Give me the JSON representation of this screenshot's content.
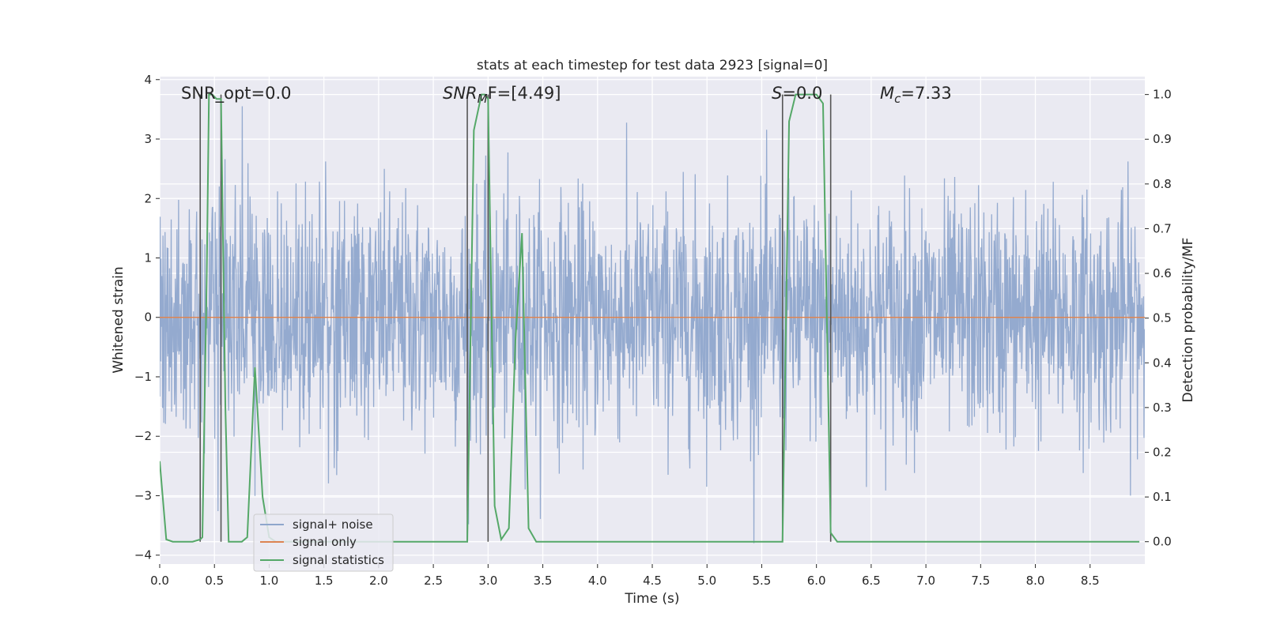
{
  "chart_data": {
    "type": "line",
    "title": "stats at each timestep for test data 2923 [signal=0]",
    "xlabel": "Time (s)",
    "ylabel_left": "Whitened strain",
    "ylabel_right": "Detection probability/MF",
    "xlim": [
      0,
      9.0
    ],
    "ylim_left": [
      -4.15,
      4.05
    ],
    "ylim_right": [
      -0.05,
      1.04
    ],
    "x_ticks": [
      "0.0",
      "0.5",
      "1.0",
      "1.5",
      "2.0",
      "2.5",
      "3.0",
      "3.5",
      "4.0",
      "4.5",
      "5.0",
      "5.5",
      "6.0",
      "6.5",
      "7.0",
      "7.5",
      "8.0",
      "8.5"
    ],
    "y_ticks_left": [
      "4",
      "3",
      "2",
      "1",
      "0",
      "−1",
      "−2",
      "−3",
      "−4"
    ],
    "y_ticks_right": [
      "1.0",
      "0.9",
      "0.8",
      "0.7",
      "0.6",
      "0.5",
      "0.4",
      "0.3",
      "0.2",
      "0.1",
      "0.0"
    ],
    "grid": true,
    "legend_position": "lower-left",
    "annotations": {
      "snr_opt": "SNR_opt=0.0",
      "snr_mf_base": "SNR",
      "snr_mf_sub": "M",
      "snr_mf_rest": "F=[4.49]",
      "s_label": "S",
      "s_value": "=0.0",
      "mc_base": "M",
      "mc_sub": "c",
      "mc_value": "=7.33"
    },
    "detection_markers_x": [
      0.37,
      0.56,
      2.81,
      3.0,
      5.69,
      6.13
    ],
    "series": [
      {
        "name": "signal+ noise",
        "axis": "left",
        "color": "#8fa6cc",
        "description_values": "noise std 1.0, amplitude range approx -3.8 to 3.7"
      },
      {
        "name": "signal only",
        "axis": "left",
        "color": "#dd8452",
        "x": [
          0,
          9.0
        ],
        "y": [
          0,
          0
        ]
      },
      {
        "name": "signal statistics",
        "axis": "right",
        "color": "#55a868",
        "x": [
          0.0,
          0.06,
          0.12,
          0.3,
          0.37,
          0.39,
          0.43,
          0.45,
          0.48,
          0.52,
          0.56,
          0.6,
          0.63,
          0.75,
          0.8,
          0.87,
          0.94,
          1.0,
          1.06,
          1.2,
          1.5,
          2.0,
          2.5,
          2.81,
          2.87,
          2.94,
          2.97,
          3.0,
          3.06,
          3.12,
          3.19,
          3.25,
          3.31,
          3.37,
          3.44,
          3.5,
          4.0,
          4.5,
          5.0,
          5.5,
          5.69,
          5.75,
          5.81,
          5.87,
          5.94,
          6.0,
          6.06,
          6.13,
          6.19,
          6.25,
          6.5,
          7.0,
          7.5,
          8.0,
          8.5,
          8.95
        ],
        "y": [
          0.18,
          0.005,
          0.0,
          0.0,
          0.005,
          0.01,
          0.6,
          1.0,
          1.0,
          0.99,
          0.99,
          0.3,
          0.0,
          0.0,
          0.01,
          0.39,
          0.1,
          0.01,
          0.0,
          0.0,
          0.0,
          0.0,
          0.0,
          0.0,
          0.92,
          1.0,
          1.0,
          0.99,
          0.08,
          0.005,
          0.03,
          0.45,
          0.69,
          0.03,
          0.0,
          0.0,
          0.0,
          0.0,
          0.0,
          0.0,
          0.0,
          0.94,
          1.0,
          1.0,
          1.0,
          1.0,
          0.98,
          0.02,
          0.0,
          0.0,
          0.0,
          0.0,
          0.0,
          0.0,
          0.0,
          0.0
        ]
      }
    ]
  }
}
